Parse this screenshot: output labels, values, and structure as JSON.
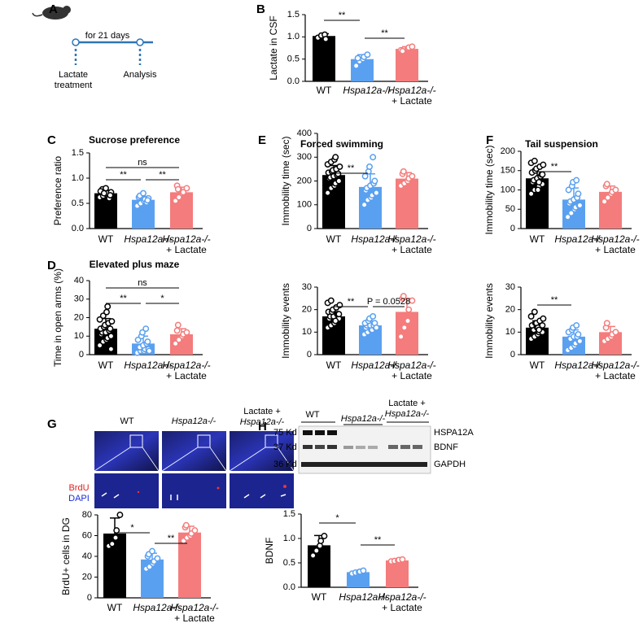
{
  "panel_labels": [
    "A",
    "B",
    "C",
    "D",
    "E",
    "F",
    "G",
    "H"
  ],
  "diagram": {
    "duration": "for 21 days",
    "start": [
      "Lactate",
      "treatment"
    ],
    "end": "Analysis"
  },
  "imaging": {
    "groups": [
      [
        "WT"
      ],
      [
        "Hspa12a-/-"
      ],
      [
        "Lactate +",
        "Hspa12a-/-"
      ]
    ],
    "stains": [
      "BrdU",
      "DAPI"
    ]
  },
  "blot": {
    "groups": [
      [
        "WT"
      ],
      [
        "Hspa12a-/-"
      ],
      [
        "Lactate +",
        "Hspa12a-/-"
      ]
    ],
    "markers": [
      "75 Kd",
      "37 Kd",
      "36 Kd"
    ],
    "proteins": [
      "HSPA12A",
      "BDNF",
      "GAPDH"
    ]
  },
  "chart_data": [
    {
      "type": "bar",
      "ylabel": "Lactate in CSF",
      "categories": [
        [
          "WT"
        ],
        [
          "Hspa12a-/-"
        ],
        [
          "Hspa12a-/-",
          "+ Lactate"
        ]
      ],
      "colors": [
        "#000000",
        "#5aa0f0",
        "#f47c7c"
      ],
      "values": [
        1.02,
        0.5,
        0.73
      ],
      "errors": [
        0.05,
        0.1,
        0.05
      ],
      "points": [
        [
          0.98,
          1.03,
          1.05,
          0.95
        ],
        [
          0.35,
          0.45,
          0.5,
          0.55,
          0.6,
          0.52
        ],
        [
          0.7,
          0.72,
          0.74,
          0.76,
          0.78,
          0.68
        ]
      ],
      "ylim": [
        0,
        1.5
      ],
      "yticks": [
        {
          "value": 0,
          "label": "0.0"
        },
        0.5,
        {
          "value": 1,
          "label": "1.0"
        },
        1.5
      ],
      "annotations": [
        {
          "text": "**",
          "pair": [
            0,
            1
          ]
        },
        {
          "text": "**",
          "pair": [
            1,
            2
          ]
        }
      ]
    },
    {
      "type": "bar",
      "title": "Sucrose preference",
      "ylabel": "Preference ratio",
      "categories": [
        [
          "WT"
        ],
        [
          "Hspa12a-/-"
        ],
        [
          "Hspa12a-/-",
          "+ Lactate"
        ]
      ],
      "colors": [
        "#000000",
        "#5aa0f0",
        "#f47c7c"
      ],
      "values": [
        0.7,
        0.57,
        0.72
      ],
      "errors": [
        0.06,
        0.07,
        0.1
      ],
      "points": [
        [
          0.62,
          0.65,
          0.68,
          0.7,
          0.72,
          0.75,
          0.78,
          0.8,
          0.6,
          0.66,
          0.74,
          0.7
        ],
        [
          0.45,
          0.5,
          0.55,
          0.58,
          0.6,
          0.62,
          0.65,
          0.7,
          0.52,
          0.56
        ],
        [
          0.55,
          0.62,
          0.7,
          0.72,
          0.8,
          0.85,
          0.78
        ]
      ],
      "ylim": [
        0,
        1.5
      ],
      "yticks": [
        {
          "value": 0,
          "label": "0.0"
        },
        0.5,
        {
          "value": 1,
          "label": "1.0"
        },
        1.5
      ],
      "annotations": [
        {
          "text": "ns",
          "pair": [
            0,
            2
          ]
        },
        {
          "text": "**",
          "pair": [
            0,
            1
          ]
        },
        {
          "text": "**",
          "pair": [
            1,
            2
          ]
        }
      ]
    },
    {
      "type": "bar",
      "title": "Elevated plus maze",
      "ylabel": "Time in open arms (%)",
      "categories": [
        [
          "WT"
        ],
        [
          "Hspa12a-/-"
        ],
        [
          "Hspa12a-/-",
          "+ Lactate"
        ]
      ],
      "colors": [
        "#000000",
        "#5aa0f0",
        "#f47c7c"
      ],
      "values": [
        14,
        6,
        11
      ],
      "errors": [
        5.5,
        4,
        3
      ],
      "points": [
        [
          5,
          7,
          8,
          9,
          10,
          11,
          12,
          12,
          13,
          14,
          14,
          15,
          16,
          17,
          18,
          19,
          21,
          23,
          26,
          3
        ],
        [
          1,
          2,
          2,
          3,
          3,
          4,
          4,
          5,
          6,
          7,
          8,
          10,
          12,
          14,
          2
        ],
        [
          6,
          8,
          10,
          11,
          12,
          13,
          16
        ]
      ],
      "ylim": [
        0,
        40
      ],
      "yticks": [
        0,
        10,
        20,
        30,
        40
      ],
      "annotations": [
        {
          "text": "ns",
          "pair": [
            0,
            2
          ]
        },
        {
          "text": "**",
          "pair": [
            0,
            1
          ]
        },
        {
          "text": "*",
          "pair": [
            1,
            2
          ]
        }
      ]
    },
    {
      "type": "bar",
      "title": "Forced swimming",
      "ylabel": "Immobility time (sec)",
      "categories": [
        [
          "WT"
        ],
        [
          "Hspa12a-/-"
        ],
        [
          "Hspa12a-/-",
          "+ Lactate"
        ]
      ],
      "colors": [
        "#000000",
        "#5aa0f0",
        "#f47c7c"
      ],
      "values": [
        225,
        175,
        210
      ],
      "errors": [
        40,
        55,
        25
      ],
      "points": [
        [
          150,
          170,
          180,
          190,
          200,
          210,
          215,
          220,
          225,
          230,
          235,
          240,
          245,
          250,
          260,
          270,
          280,
          290,
          300,
          200
        ],
        [
          100,
          120,
          130,
          140,
          150,
          160,
          170,
          180,
          190,
          200,
          220,
          240,
          260,
          300,
          150
        ],
        [
          180,
          190,
          200,
          210,
          220,
          230,
          240
        ]
      ],
      "ylim": [
        0,
        400
      ],
      "yticks": [
        0,
        100,
        200,
        300,
        400
      ],
      "annotations": [
        {
          "text": "**",
          "pair": [
            0,
            1
          ]
        }
      ]
    },
    {
      "type": "bar",
      "ylabel": "Immobility events",
      "categories": [
        [
          "WT"
        ],
        [
          "Hspa12a-/-"
        ],
        [
          "Hspa12a-/-",
          "+ Lactate"
        ]
      ],
      "colors": [
        "#000000",
        "#5aa0f0",
        "#f47c7c"
      ],
      "values": [
        17,
        13,
        19
      ],
      "errors": [
        3,
        2,
        6
      ],
      "points": [
        [
          12,
          13,
          14,
          15,
          16,
          16,
          17,
          17,
          18,
          18,
          19,
          19,
          20,
          21,
          22,
          23,
          24,
          14,
          15,
          18
        ],
        [
          9,
          10,
          11,
          11,
          12,
          12,
          13,
          13,
          13,
          14,
          14,
          15,
          16,
          17,
          12
        ],
        [
          8,
          12,
          15,
          20,
          24,
          25,
          26
        ]
      ],
      "ylim": [
        0,
        30
      ],
      "yticks": [
        0,
        10,
        20,
        30
      ],
      "annotations": [
        {
          "text": "**",
          "pair": [
            0,
            1
          ]
        },
        {
          "text": "P = 0.0528",
          "pair": [
            1,
            2
          ]
        }
      ]
    },
    {
      "type": "bar",
      "title": "Tail suspension",
      "ylabel": "Immobility time (sec)",
      "categories": [
        [
          "WT"
        ],
        [
          "Hspa12a-/-"
        ],
        [
          "Hspa12a-/-",
          "+ Lactate"
        ]
      ],
      "colors": [
        "#000000",
        "#5aa0f0",
        "#f47c7c"
      ],
      "values": [
        130,
        75,
        95
      ],
      "errors": [
        25,
        30,
        15
      ],
      "points": [
        [
          90,
          100,
          105,
          110,
          115,
          120,
          125,
          130,
          135,
          140,
          145,
          150,
          155,
          160,
          165,
          170,
          175,
          100,
          120,
          140
        ],
        [
          30,
          40,
          50,
          55,
          60,
          65,
          70,
          75,
          80,
          90,
          100,
          110,
          120,
          125,
          60
        ],
        [
          70,
          80,
          90,
          95,
          100,
          110,
          115
        ]
      ],
      "ylim": [
        0,
        200
      ],
      "yticks": [
        0,
        50,
        100,
        150,
        200
      ],
      "annotations": [
        {
          "text": "**",
          "pair": [
            0,
            1
          ]
        }
      ]
    },
    {
      "type": "bar",
      "ylabel": "Immobility events",
      "categories": [
        [
          "WT"
        ],
        [
          "Hspa12a-/-"
        ],
        [
          "Hspa12a-/-",
          "+ Lactate"
        ]
      ],
      "colors": [
        "#000000",
        "#5aa0f0",
        "#f47c7c"
      ],
      "values": [
        12,
        8,
        10
      ],
      "errors": [
        3,
        3,
        2.5
      ],
      "points": [
        [
          7,
          8,
          9,
          10,
          10,
          11,
          11,
          12,
          12,
          13,
          13,
          14,
          14,
          15,
          16,
          17,
          19,
          12,
          11,
          13
        ],
        [
          2,
          3,
          4,
          5,
          6,
          7,
          7,
          8,
          8,
          9,
          10,
          11,
          12,
          13,
          6
        ],
        [
          6,
          7,
          8,
          9,
          10,
          12,
          14
        ]
      ],
      "ylim": [
        0,
        30
      ],
      "yticks": [
        0,
        10,
        20,
        30
      ],
      "annotations": [
        {
          "text": "**",
          "pair": [
            0,
            1
          ]
        }
      ]
    },
    {
      "type": "bar",
      "ylabel": "BrdU+ cells in DG",
      "categories": [
        [
          "WT"
        ],
        [
          "Hspa12a-/-"
        ],
        [
          "Hspa12a-/-",
          "+ Lactate"
        ]
      ],
      "colors": [
        "#000000",
        "#5aa0f0",
        "#f47c7c"
      ],
      "values": [
        62,
        37,
        63
      ],
      "errors": [
        15,
        6,
        6
      ],
      "points": [
        [
          50,
          52,
          58,
          65,
          80
        ],
        [
          28,
          30,
          33,
          35,
          38,
          40,
          42,
          45
        ],
        [
          55,
          58,
          60,
          62,
          65,
          68,
          70
        ]
      ],
      "ylim": [
        0,
        80
      ],
      "yticks": [
        0,
        20,
        40,
        60,
        80
      ],
      "annotations": [
        {
          "text": "*",
          "pair": [
            0,
            1
          ]
        },
        {
          "text": "**",
          "pair": [
            1,
            2
          ]
        }
      ]
    },
    {
      "type": "bar",
      "ylabel": "BDNF",
      "categories": [
        [
          "WT"
        ],
        [
          "Hspa12a-/-"
        ],
        [
          "Hspa12a-/-",
          "+ Lactate"
        ]
      ],
      "colors": [
        "#000000",
        "#5aa0f0",
        "#f47c7c"
      ],
      "values": [
        0.86,
        0.31,
        0.55
      ],
      "errors": [
        0.2,
        0.03,
        0.02
      ],
      "points": [
        [
          0.65,
          0.75,
          0.85,
          0.95,
          1.05
        ],
        [
          0.28,
          0.3,
          0.31,
          0.32,
          0.34
        ],
        [
          0.53,
          0.54,
          0.55,
          0.56,
          0.57
        ]
      ],
      "ylim": [
        0,
        1.5
      ],
      "yticks": [
        {
          "value": 0,
          "label": "0.0"
        },
        0.5,
        {
          "value": 1,
          "label": "1.0"
        },
        1.5
      ],
      "annotations": [
        {
          "text": "*",
          "pair": [
            0,
            1
          ]
        },
        {
          "text": "**",
          "pair": [
            1,
            2
          ]
        }
      ]
    }
  ]
}
